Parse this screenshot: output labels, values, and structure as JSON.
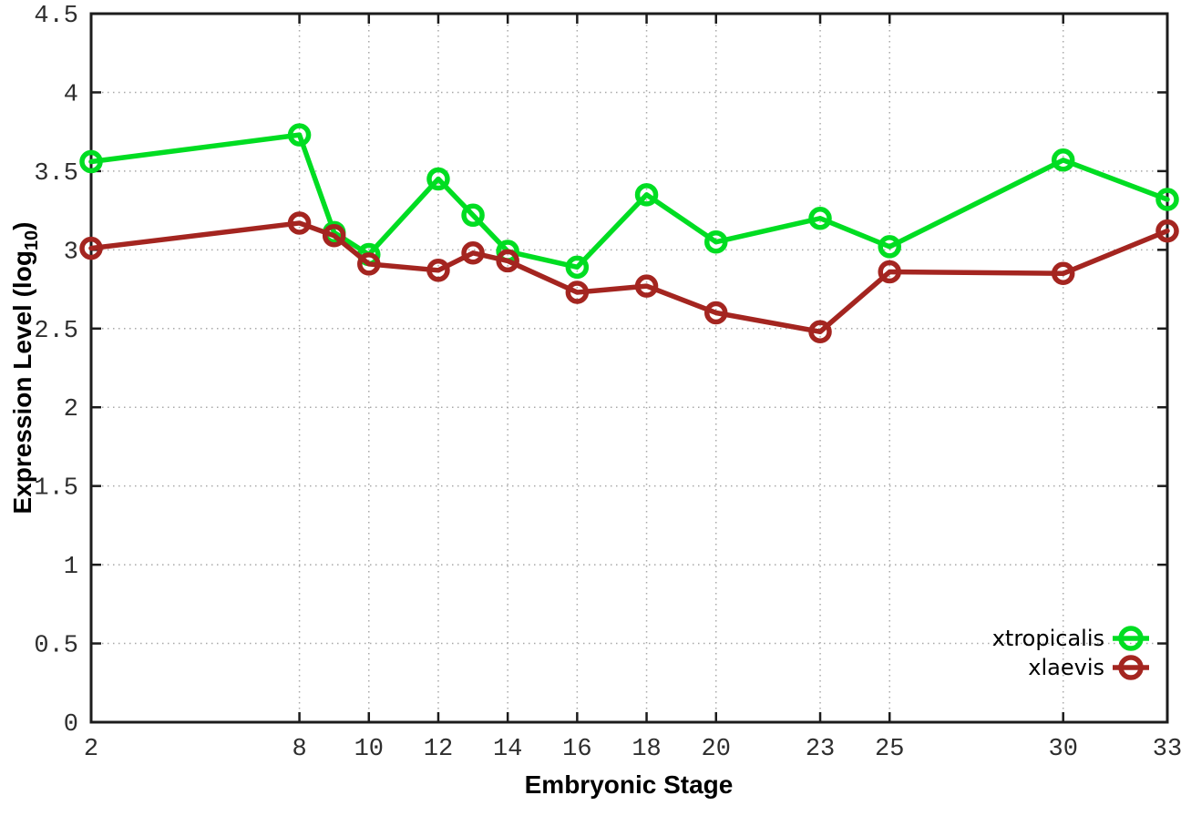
{
  "chart_data": {
    "type": "line",
    "title": "",
    "xlabel": "Embryonic Stage",
    "ylabel": "Expression Level (log10)",
    "ylabel_parts": {
      "pre": "Expression Level (log",
      "sub": "10",
      "post": ")"
    },
    "x": [
      2,
      8,
      9,
      10,
      12,
      13,
      14,
      16,
      18,
      20,
      23,
      25,
      30,
      33
    ],
    "series": [
      {
        "name": "xtropicalis",
        "color": "#00dd22",
        "values": [
          3.56,
          3.73,
          3.11,
          2.97,
          3.45,
          3.22,
          2.99,
          2.89,
          3.35,
          3.05,
          3.2,
          3.02,
          3.57,
          3.32
        ]
      },
      {
        "name": "xlaevis",
        "color": "#a42520",
        "values": [
          3.01,
          3.17,
          3.09,
          2.91,
          2.87,
          2.98,
          2.93,
          2.73,
          2.77,
          2.6,
          2.48,
          2.86,
          2.85,
          3.12
        ]
      }
    ],
    "xlim": [
      2,
      33
    ],
    "ylim": [
      0,
      4.5
    ],
    "xticks": [
      2,
      8,
      10,
      12,
      14,
      16,
      18,
      20,
      23,
      25,
      30,
      33
    ],
    "xtick_labels": [
      "2",
      "8",
      "10",
      "12",
      "14",
      "16",
      "18",
      "20",
      "23",
      "25",
      "30",
      "33"
    ],
    "yticks": [
      0,
      0.5,
      1,
      1.5,
      2,
      2.5,
      3,
      3.5,
      4,
      4.5
    ],
    "ytick_labels": [
      "0",
      "0.5",
      "1",
      "1.5",
      "2",
      "2.5",
      "3",
      "3.5",
      "4",
      "4.5"
    ],
    "grid": true,
    "grid_style": "dotted",
    "legend_position": "inside-right-bottom",
    "marker": "open-circle",
    "line_width": 5.5,
    "marker_radius": 10
  },
  "colors": {
    "background": "#ffffff",
    "grid": "#a8a8a8",
    "axis": "#1c1c1c",
    "tick_label": "#2e2e2e"
  }
}
